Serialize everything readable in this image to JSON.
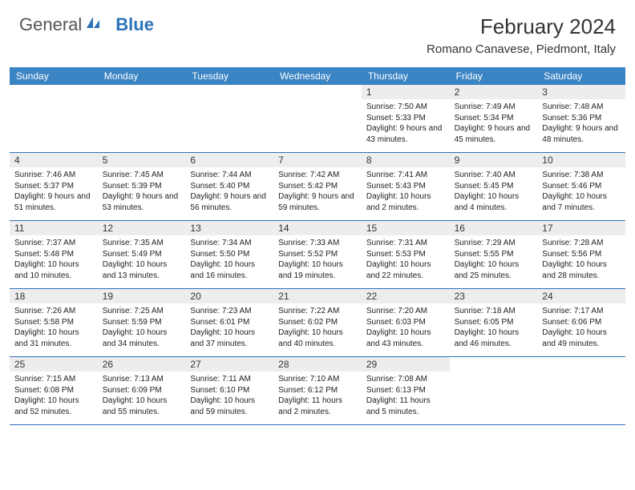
{
  "logo": {
    "text1": "General",
    "text2": "Blue"
  },
  "title": "February 2024",
  "location": "Romano Canavese, Piedmont, Italy",
  "colors": {
    "header_bg": "#3b84c4",
    "header_text": "#ffffff",
    "daynum_bg": "#ededed",
    "border": "#2d72b8",
    "logo_gray": "#555555",
    "logo_blue": "#2d72b8",
    "text": "#222222"
  },
  "day_names": [
    "Sunday",
    "Monday",
    "Tuesday",
    "Wednesday",
    "Thursday",
    "Friday",
    "Saturday"
  ],
  "weeks": [
    [
      {
        "n": "",
        "sr": "",
        "ss": "",
        "dl": ""
      },
      {
        "n": "",
        "sr": "",
        "ss": "",
        "dl": ""
      },
      {
        "n": "",
        "sr": "",
        "ss": "",
        "dl": ""
      },
      {
        "n": "",
        "sr": "",
        "ss": "",
        "dl": ""
      },
      {
        "n": "1",
        "sr": "Sunrise: 7:50 AM",
        "ss": "Sunset: 5:33 PM",
        "dl": "Daylight: 9 hours and 43 minutes."
      },
      {
        "n": "2",
        "sr": "Sunrise: 7:49 AM",
        "ss": "Sunset: 5:34 PM",
        "dl": "Daylight: 9 hours and 45 minutes."
      },
      {
        "n": "3",
        "sr": "Sunrise: 7:48 AM",
        "ss": "Sunset: 5:36 PM",
        "dl": "Daylight: 9 hours and 48 minutes."
      }
    ],
    [
      {
        "n": "4",
        "sr": "Sunrise: 7:46 AM",
        "ss": "Sunset: 5:37 PM",
        "dl": "Daylight: 9 hours and 51 minutes."
      },
      {
        "n": "5",
        "sr": "Sunrise: 7:45 AM",
        "ss": "Sunset: 5:39 PM",
        "dl": "Daylight: 9 hours and 53 minutes."
      },
      {
        "n": "6",
        "sr": "Sunrise: 7:44 AM",
        "ss": "Sunset: 5:40 PM",
        "dl": "Daylight: 9 hours and 56 minutes."
      },
      {
        "n": "7",
        "sr": "Sunrise: 7:42 AM",
        "ss": "Sunset: 5:42 PM",
        "dl": "Daylight: 9 hours and 59 minutes."
      },
      {
        "n": "8",
        "sr": "Sunrise: 7:41 AM",
        "ss": "Sunset: 5:43 PM",
        "dl": "Daylight: 10 hours and 2 minutes."
      },
      {
        "n": "9",
        "sr": "Sunrise: 7:40 AM",
        "ss": "Sunset: 5:45 PM",
        "dl": "Daylight: 10 hours and 4 minutes."
      },
      {
        "n": "10",
        "sr": "Sunrise: 7:38 AM",
        "ss": "Sunset: 5:46 PM",
        "dl": "Daylight: 10 hours and 7 minutes."
      }
    ],
    [
      {
        "n": "11",
        "sr": "Sunrise: 7:37 AM",
        "ss": "Sunset: 5:48 PM",
        "dl": "Daylight: 10 hours and 10 minutes."
      },
      {
        "n": "12",
        "sr": "Sunrise: 7:35 AM",
        "ss": "Sunset: 5:49 PM",
        "dl": "Daylight: 10 hours and 13 minutes."
      },
      {
        "n": "13",
        "sr": "Sunrise: 7:34 AM",
        "ss": "Sunset: 5:50 PM",
        "dl": "Daylight: 10 hours and 16 minutes."
      },
      {
        "n": "14",
        "sr": "Sunrise: 7:33 AM",
        "ss": "Sunset: 5:52 PM",
        "dl": "Daylight: 10 hours and 19 minutes."
      },
      {
        "n": "15",
        "sr": "Sunrise: 7:31 AM",
        "ss": "Sunset: 5:53 PM",
        "dl": "Daylight: 10 hours and 22 minutes."
      },
      {
        "n": "16",
        "sr": "Sunrise: 7:29 AM",
        "ss": "Sunset: 5:55 PM",
        "dl": "Daylight: 10 hours and 25 minutes."
      },
      {
        "n": "17",
        "sr": "Sunrise: 7:28 AM",
        "ss": "Sunset: 5:56 PM",
        "dl": "Daylight: 10 hours and 28 minutes."
      }
    ],
    [
      {
        "n": "18",
        "sr": "Sunrise: 7:26 AM",
        "ss": "Sunset: 5:58 PM",
        "dl": "Daylight: 10 hours and 31 minutes."
      },
      {
        "n": "19",
        "sr": "Sunrise: 7:25 AM",
        "ss": "Sunset: 5:59 PM",
        "dl": "Daylight: 10 hours and 34 minutes."
      },
      {
        "n": "20",
        "sr": "Sunrise: 7:23 AM",
        "ss": "Sunset: 6:01 PM",
        "dl": "Daylight: 10 hours and 37 minutes."
      },
      {
        "n": "21",
        "sr": "Sunrise: 7:22 AM",
        "ss": "Sunset: 6:02 PM",
        "dl": "Daylight: 10 hours and 40 minutes."
      },
      {
        "n": "22",
        "sr": "Sunrise: 7:20 AM",
        "ss": "Sunset: 6:03 PM",
        "dl": "Daylight: 10 hours and 43 minutes."
      },
      {
        "n": "23",
        "sr": "Sunrise: 7:18 AM",
        "ss": "Sunset: 6:05 PM",
        "dl": "Daylight: 10 hours and 46 minutes."
      },
      {
        "n": "24",
        "sr": "Sunrise: 7:17 AM",
        "ss": "Sunset: 6:06 PM",
        "dl": "Daylight: 10 hours and 49 minutes."
      }
    ],
    [
      {
        "n": "25",
        "sr": "Sunrise: 7:15 AM",
        "ss": "Sunset: 6:08 PM",
        "dl": "Daylight: 10 hours and 52 minutes."
      },
      {
        "n": "26",
        "sr": "Sunrise: 7:13 AM",
        "ss": "Sunset: 6:09 PM",
        "dl": "Daylight: 10 hours and 55 minutes."
      },
      {
        "n": "27",
        "sr": "Sunrise: 7:11 AM",
        "ss": "Sunset: 6:10 PM",
        "dl": "Daylight: 10 hours and 59 minutes."
      },
      {
        "n": "28",
        "sr": "Sunrise: 7:10 AM",
        "ss": "Sunset: 6:12 PM",
        "dl": "Daylight: 11 hours and 2 minutes."
      },
      {
        "n": "29",
        "sr": "Sunrise: 7:08 AM",
        "ss": "Sunset: 6:13 PM",
        "dl": "Daylight: 11 hours and 5 minutes."
      },
      {
        "n": "",
        "sr": "",
        "ss": "",
        "dl": ""
      },
      {
        "n": "",
        "sr": "",
        "ss": "",
        "dl": ""
      }
    ]
  ]
}
